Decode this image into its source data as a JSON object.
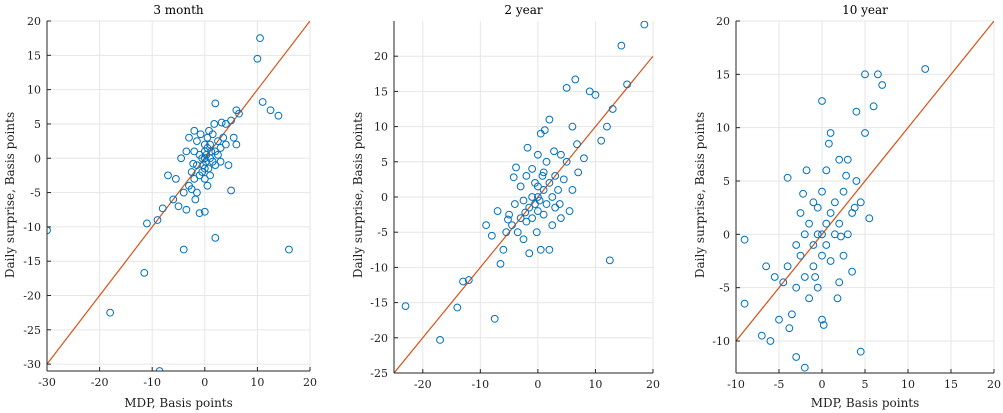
{
  "colors": {
    "scatter": "#0072BD",
    "fit_line": "#D95319",
    "grid": "#e6e6e6",
    "axis": "#262626"
  },
  "chart_data": [
    {
      "type": "scatter",
      "title": "3 month",
      "xlabel": "MDP, Basis points",
      "ylabel": "Daily surprise, Basis points",
      "xlim": [
        -30,
        20
      ],
      "ylim": [
        -31,
        20
      ],
      "xticks": [
        -30,
        -20,
        -10,
        0,
        10,
        20
      ],
      "yticks": [
        -30,
        -25,
        -20,
        -15,
        -10,
        -5,
        0,
        5,
        10,
        15,
        20
      ],
      "grid": true,
      "line": {
        "x": [
          -30,
          20
        ],
        "y": [
          -30,
          20
        ]
      },
      "points": [
        [
          -30,
          -10.5
        ],
        [
          -18,
          -22.5
        ],
        [
          -11.5,
          -16.7
        ],
        [
          -8.6,
          -31
        ],
        [
          -11,
          -9.5
        ],
        [
          -9,
          -9
        ],
        [
          -8,
          -7.3
        ],
        [
          -7,
          -2.5
        ],
        [
          -6,
          -6
        ],
        [
          -5,
          -7
        ],
        [
          -4,
          -13.3
        ],
        [
          -4,
          -5
        ],
        [
          -3.5,
          -7.5
        ],
        [
          -3,
          -4
        ],
        [
          -2.5,
          -2
        ],
        [
          -2,
          -3
        ],
        [
          -2,
          1
        ],
        [
          -1.5,
          -5
        ],
        [
          -1.5,
          -1
        ],
        [
          -1,
          -8
        ],
        [
          -1,
          -2.5
        ],
        [
          -1,
          0.5
        ],
        [
          -0.5,
          -2
        ],
        [
          -0.5,
          0
        ],
        [
          -0.3,
          -1
        ],
        [
          0,
          -7.8
        ],
        [
          0,
          -3
        ],
        [
          0,
          -1.5
        ],
        [
          0,
          0
        ],
        [
          0,
          1
        ],
        [
          0,
          2
        ],
        [
          0.2,
          -0.5
        ],
        [
          0.3,
          0.5
        ],
        [
          0.5,
          -4
        ],
        [
          0.5,
          1.5
        ],
        [
          0.5,
          3
        ],
        [
          0.7,
          -1.5
        ],
        [
          1,
          0
        ],
        [
          1,
          2
        ],
        [
          1,
          -2.5
        ],
        [
          1.2,
          1
        ],
        [
          1.5,
          -0.5
        ],
        [
          1.5,
          3.5
        ],
        [
          2,
          -11.6
        ],
        [
          2,
          8
        ],
        [
          2,
          1
        ],
        [
          2,
          -1
        ],
        [
          2.5,
          0.5
        ],
        [
          2.5,
          2.5
        ],
        [
          3,
          1.5
        ],
        [
          3,
          -0.5
        ],
        [
          3.5,
          3
        ],
        [
          4,
          5
        ],
        [
          4,
          2
        ],
        [
          4.5,
          -1
        ],
        [
          5,
          -4.7
        ],
        [
          5,
          5.5
        ],
        [
          5.5,
          3
        ],
        [
          6,
          7
        ],
        [
          6.5,
          6.5
        ],
        [
          6,
          2
        ],
        [
          10,
          14.5
        ],
        [
          10.5,
          17.5
        ],
        [
          11,
          8.2
        ],
        [
          12.5,
          7
        ],
        [
          14,
          6.2
        ],
        [
          16,
          -13.3
        ],
        [
          -3,
          3
        ],
        [
          -2,
          4
        ],
        [
          -1.5,
          2.5
        ],
        [
          -3.5,
          1
        ],
        [
          -2.5,
          -4.5
        ],
        [
          -1.8,
          -6
        ],
        [
          0.8,
          4
        ],
        [
          1.8,
          5
        ],
        [
          3.2,
          5.2
        ],
        [
          -0.8,
          3.5
        ],
        [
          -4.5,
          0
        ],
        [
          -5.5,
          -3
        ],
        [
          -2.2,
          -0.8
        ]
      ]
    },
    {
      "type": "scatter",
      "title": "2 year",
      "xlabel": "",
      "ylabel": "Daily surprise, Basis points",
      "xlim": [
        -25,
        20
      ],
      "ylim": [
        -25,
        25
      ],
      "xticks": [
        -20,
        -10,
        0,
        10,
        20
      ],
      "yticks": [
        -25,
        -20,
        -15,
        -10,
        -5,
        0,
        5,
        10,
        15,
        20
      ],
      "grid": true,
      "line": {
        "x": [
          -25,
          20
        ],
        "y": [
          -25,
          20
        ]
      },
      "points": [
        [
          -23,
          -15.5
        ],
        [
          -17,
          -20.3
        ],
        [
          -14,
          -15.7
        ],
        [
          -13,
          -12
        ],
        [
          -12,
          -11.8
        ],
        [
          -7.5,
          -17.3
        ],
        [
          -6,
          -7.5
        ],
        [
          -5.5,
          -5
        ],
        [
          -5,
          -2.5
        ],
        [
          -4.5,
          -4
        ],
        [
          -4,
          -1
        ],
        [
          -3.5,
          -5
        ],
        [
          -3,
          -3
        ],
        [
          -3,
          1.5
        ],
        [
          -2.5,
          -6
        ],
        [
          -2.5,
          -0.5
        ],
        [
          -2,
          -3.5
        ],
        [
          -2,
          3
        ],
        [
          -1.5,
          -1.5
        ],
        [
          -1.5,
          -8
        ],
        [
          -1,
          0
        ],
        [
          -1,
          -3
        ],
        [
          -1,
          4
        ],
        [
          -0.5,
          -1
        ],
        [
          -0.5,
          2
        ],
        [
          -0.2,
          -5
        ],
        [
          0,
          0
        ],
        [
          0,
          -2
        ],
        [
          0,
          1.5
        ],
        [
          0,
          6
        ],
        [
          0.3,
          -0.5
        ],
        [
          0.5,
          9
        ],
        [
          0.5,
          -7.5
        ],
        [
          1,
          1
        ],
        [
          1,
          -2.5
        ],
        [
          1,
          3.5
        ],
        [
          1.5,
          -1
        ],
        [
          1.5,
          5
        ],
        [
          2,
          -7.5
        ],
        [
          2,
          2
        ],
        [
          2,
          11
        ],
        [
          2.5,
          0
        ],
        [
          2.5,
          -4
        ],
        [
          3,
          3
        ],
        [
          3,
          -1.5
        ],
        [
          3.5,
          1
        ],
        [
          4,
          6
        ],
        [
          4,
          -3
        ],
        [
          4.5,
          2.5
        ],
        [
          5,
          15.5
        ],
        [
          5,
          5
        ],
        [
          5.5,
          -2
        ],
        [
          6,
          10
        ],
        [
          6,
          1
        ],
        [
          6.5,
          16.7
        ],
        [
          7,
          3.5
        ],
        [
          8,
          5.5
        ],
        [
          9,
          15
        ],
        [
          10,
          14.5
        ],
        [
          11,
          8
        ],
        [
          12,
          10
        ],
        [
          12.5,
          -9
        ],
        [
          13,
          12.5
        ],
        [
          14.5,
          21.5
        ],
        [
          15.5,
          16
        ],
        [
          18.5,
          24.5
        ],
        [
          -9,
          -4
        ],
        [
          -8,
          -5.5
        ],
        [
          -7,
          -2
        ],
        [
          -6.5,
          -9.5
        ],
        [
          -3.8,
          4.2
        ],
        [
          -1.8,
          7
        ],
        [
          1.2,
          9.5
        ],
        [
          2.8,
          6.5
        ],
        [
          -5.2,
          -3.2
        ],
        [
          -2.2,
          -2.2
        ],
        [
          0.8,
          3
        ],
        [
          3.8,
          -1
        ],
        [
          6.8,
          7.5
        ],
        [
          -4.2,
          2.8
        ]
      ]
    },
    {
      "type": "scatter",
      "title": "10 year",
      "xlabel": "MDP, Basis points",
      "ylabel": "Daily surprise, Basis points",
      "xlim": [
        -10,
        20
      ],
      "ylim": [
        -13,
        20
      ],
      "xticks": [
        -10,
        -5,
        0,
        5,
        10,
        15,
        20
      ],
      "yticks": [
        -10,
        -5,
        0,
        5,
        10,
        15,
        20
      ],
      "grid": true,
      "line": {
        "x": [
          -10,
          20
        ],
        "y": [
          -10,
          20
        ]
      },
      "points": [
        [
          -9,
          -6.5
        ],
        [
          -9,
          -0.5
        ],
        [
          -7,
          -9.5
        ],
        [
          -6,
          -10
        ],
        [
          -5.5,
          -4
        ],
        [
          -5,
          -8
        ],
        [
          -4.5,
          -4.5
        ],
        [
          -4,
          -3
        ],
        [
          -3.5,
          -7.5
        ],
        [
          -3,
          -11.5
        ],
        [
          -3,
          -5
        ],
        [
          -3,
          -1
        ],
        [
          -2.5,
          -2
        ],
        [
          -2.5,
          2
        ],
        [
          -2,
          -12.5
        ],
        [
          -2,
          -4
        ],
        [
          -2,
          0
        ],
        [
          -1.5,
          -6
        ],
        [
          -1.5,
          1
        ],
        [
          -1,
          -3
        ],
        [
          -1,
          -1
        ],
        [
          -1,
          3
        ],
        [
          -0.5,
          -5
        ],
        [
          -0.5,
          0
        ],
        [
          -0.5,
          2.5
        ],
        [
          0,
          -8
        ],
        [
          0,
          -2
        ],
        [
          0,
          0
        ],
        [
          0,
          4
        ],
        [
          0,
          12.5
        ],
        [
          0.5,
          -1
        ],
        [
          0.5,
          1
        ],
        [
          0.5,
          6
        ],
        [
          1,
          -2.5
        ],
        [
          1,
          2
        ],
        [
          1,
          9.5
        ],
        [
          1.5,
          0
        ],
        [
          1.5,
          3
        ],
        [
          2,
          -4.5
        ],
        [
          2,
          1
        ],
        [
          2,
          7
        ],
        [
          2.5,
          -2
        ],
        [
          2.5,
          4
        ],
        [
          3,
          0
        ],
        [
          3,
          7
        ],
        [
          3.5,
          2
        ],
        [
          3.5,
          -3.5
        ],
        [
          4,
          5
        ],
        [
          4,
          11.5
        ],
        [
          4.5,
          -11
        ],
        [
          4.5,
          3
        ],
        [
          5,
          9.5
        ],
        [
          5,
          15
        ],
        [
          5.5,
          1.5
        ],
        [
          6,
          12
        ],
        [
          6.5,
          15
        ],
        [
          7,
          14
        ],
        [
          12,
          15.5
        ],
        [
          -4,
          5.3
        ],
        [
          -1.8,
          6
        ],
        [
          0.8,
          8.5
        ],
        [
          2.8,
          5.5
        ],
        [
          -6.5,
          -3
        ],
        [
          -3.8,
          -8.8
        ],
        [
          -0.8,
          -4
        ],
        [
          1.8,
          -6
        ],
        [
          3.8,
          2.5
        ],
        [
          -2.2,
          3.8
        ],
        [
          0.2,
          -8.5
        ],
        [
          2.2,
          -0.2
        ]
      ]
    }
  ]
}
